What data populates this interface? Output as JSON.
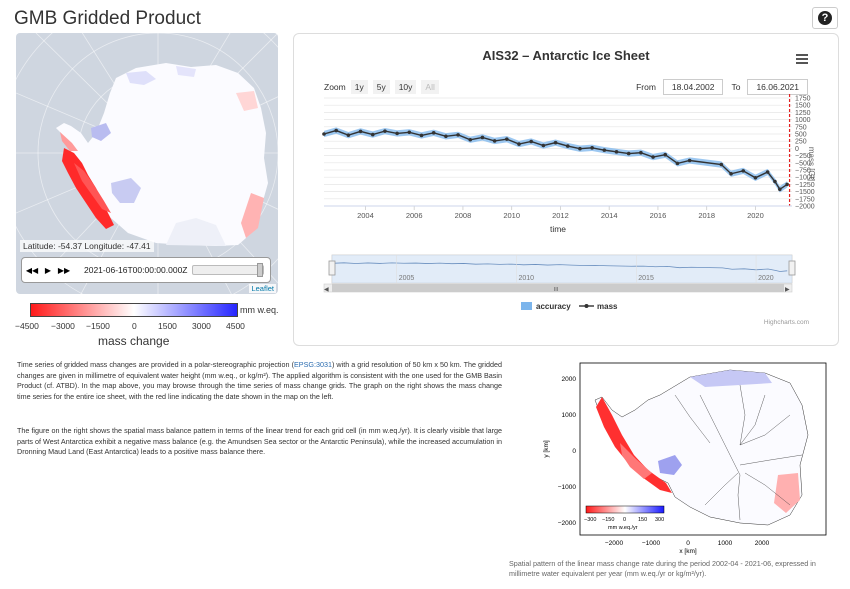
{
  "header": {
    "title": "GMB Gridded Product",
    "help_icon": "question-circle-icon",
    "help_glyph": "?"
  },
  "map": {
    "readout": "Latitude: -54.37 Longitude: -47.41",
    "timestamp": "2021-06-16T00:00:00.000Z",
    "attribution": "Leaflet",
    "controls": {
      "back_glyph": "◀◀",
      "play_glyph": "▶",
      "forward_glyph": "▶▶"
    }
  },
  "legend": {
    "unit": "mm w.eq.",
    "label": "mass change",
    "ticks": [
      "−4500",
      "−3000",
      "−1500",
      "0",
      "1500",
      "3000",
      "4500"
    ],
    "colors": {
      "negative": "#ff1a1a",
      "zero": "#ffffff",
      "positive": "#2626ff"
    }
  },
  "chart": {
    "title": "AIS32 – Antarctic Ice Sheet",
    "menu_icon": "hamburger-menu-icon",
    "zoom_label": "Zoom",
    "zoom_options": [
      "1y",
      "5y",
      "10y",
      "All"
    ],
    "from_label": "From",
    "from_value": "18.04.2002",
    "to_label": "To",
    "to_value": "16.06.2021",
    "credits": "Highcharts.com",
    "navigator_label": "III",
    "legend_accuracy": "accuracy",
    "legend_mass": "mass"
  },
  "chart_data": {
    "type": "line",
    "xlabel": "time",
    "ylabel": "mass [Gt]",
    "x_tick_labels": [
      "2004",
      "2006",
      "2008",
      "2010",
      "2012",
      "2014",
      "2016",
      "2018",
      "2020"
    ],
    "y_tick_labels": [
      "1750",
      "1500",
      "1250",
      "1000",
      "750",
      "500",
      "250",
      "0",
      "−250",
      "−500",
      "−750",
      "−1000",
      "−1250",
      "−1500",
      "−1750",
      "−2000"
    ],
    "navigator_ticks": [
      "2005",
      "2010",
      "2015",
      "2020"
    ],
    "xlim": [
      2002.3,
      2021.5
    ],
    "ylim": [
      -2000,
      1750
    ],
    "series": [
      {
        "name": "mass",
        "x": [
          2002.3,
          2002.8,
          2003.3,
          2003.8,
          2004.3,
          2004.8,
          2005.3,
          2005.8,
          2006.3,
          2006.8,
          2007.3,
          2007.8,
          2008.3,
          2008.8,
          2009.3,
          2009.8,
          2010.3,
          2010.8,
          2011.3,
          2011.8,
          2012.3,
          2012.8,
          2013.3,
          2013.8,
          2014.3,
          2014.8,
          2015.3,
          2015.8,
          2016.3,
          2016.8,
          2017.3,
          2018.6,
          2019.0,
          2019.5,
          2020.0,
          2020.5,
          2020.8,
          2021.0,
          2021.3
        ],
        "values": [
          500,
          620,
          460,
          590,
          480,
          600,
          520,
          560,
          450,
          540,
          420,
          470,
          300,
          380,
          260,
          320,
          150,
          240,
          100,
          200,
          80,
          -10,
          20,
          -60,
          -120,
          -180,
          -150,
          -300,
          -220,
          -520,
          -420,
          -560,
          -880,
          -780,
          -1020,
          -820,
          -1150,
          -1420,
          -1250
        ]
      }
    ]
  },
  "caption": {
    "p1_a": "Time series of gridded mass changes are provided in a polar-stereographic projection (",
    "p1_link": "EPSG:3031",
    "p1_b": ") with a grid resolution of 50 km x 50 km. The gridded changes are given in millimetre of equivalent water height (mm w.eq., or kg/m²). The applied algorithm is consistent with the one used for the GMB Basin Product (cf. ATBD). In the map above, you may browse through the time series of mass change grids. The graph on the right shows the mass change time series for the entire ice sheet, with the red line indicating the date shown in the map on the left.",
    "p2": "The figure on the right shows the spatial mass balance pattern in terms of the linear trend for each grid cell (in mm w.eq./yr). It is clearly visible that large parts of West Antarctica exhibit a negative mass balance (e.g. the Amundsen Sea sector or the Antarctic Peninsula), while the increased accumulation in Dronning Maud Land (East Antarctica) leads to a positive mass balance there."
  },
  "figure": {
    "ylabel": "y [km]",
    "xlabel": "x [km]",
    "yticks": [
      "2000",
      "1000",
      "0",
      "−1000",
      "−2000"
    ],
    "xticks": [
      "−2000",
      "−1000",
      "0",
      "1000",
      "2000"
    ],
    "cbar_ticks": [
      "−300",
      "−150",
      "0",
      "150",
      "300"
    ],
    "cbar_unit": "mm w.eq./yr",
    "caption": "Spatial pattern of the linear mass change rate during the period 2002-04 - 2021-06, expressed in millimetre water equivalent per year (mm w.eq./yr or kg/m²/yr)."
  }
}
